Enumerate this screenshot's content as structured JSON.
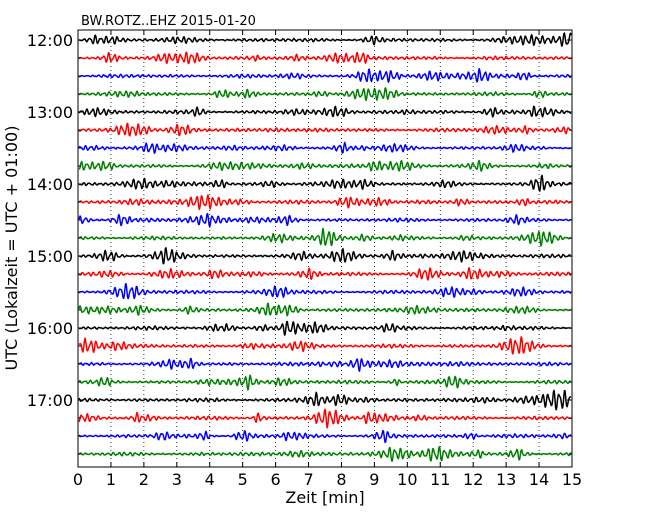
{
  "chart_data": {
    "type": "line",
    "title": "BW.ROTZ..EHZ 2015-01-20",
    "xlabel": "Zeit  [min]",
    "ylabel": "UTC (Lokalzeit = UTC + 01:00)",
    "xlim": [
      0,
      15
    ],
    "x_ticks": [
      0,
      1,
      2,
      3,
      4,
      5,
      6,
      7,
      8,
      9,
      10,
      11,
      12,
      13,
      14,
      15
    ],
    "x_tick_labels": [
      "0",
      "1",
      "2",
      "3",
      "4",
      "5",
      "6",
      "7",
      "8",
      "9",
      "10",
      "11",
      "12",
      "13",
      "14",
      "15"
    ],
    "y_tick_labels": [
      "12:00",
      "13:00",
      "14:00",
      "15:00",
      "16:00",
      "17:00"
    ],
    "grid": "vertical dotted",
    "trace_colors": [
      "#000000",
      "#ff0000",
      "#0000ff",
      "#008000"
    ],
    "traces": [
      {
        "start": "12:00"
      },
      {
        "start": "12:15"
      },
      {
        "start": "12:30"
      },
      {
        "start": "12:45"
      },
      {
        "start": "13:00"
      },
      {
        "start": "13:15"
      },
      {
        "start": "13:30"
      },
      {
        "start": "13:45"
      },
      {
        "start": "14:00"
      },
      {
        "start": "14:15"
      },
      {
        "start": "14:30"
      },
      {
        "start": "14:45"
      },
      {
        "start": "15:00"
      },
      {
        "start": "15:15"
      },
      {
        "start": "15:30"
      },
      {
        "start": "15:45"
      },
      {
        "start": "16:00"
      },
      {
        "start": "16:15"
      },
      {
        "start": "16:30"
      },
      {
        "start": "16:45"
      },
      {
        "start": "17:00"
      },
      {
        "start": "17:15"
      },
      {
        "start": "17:30"
      },
      {
        "start": "17:45"
      }
    ]
  }
}
